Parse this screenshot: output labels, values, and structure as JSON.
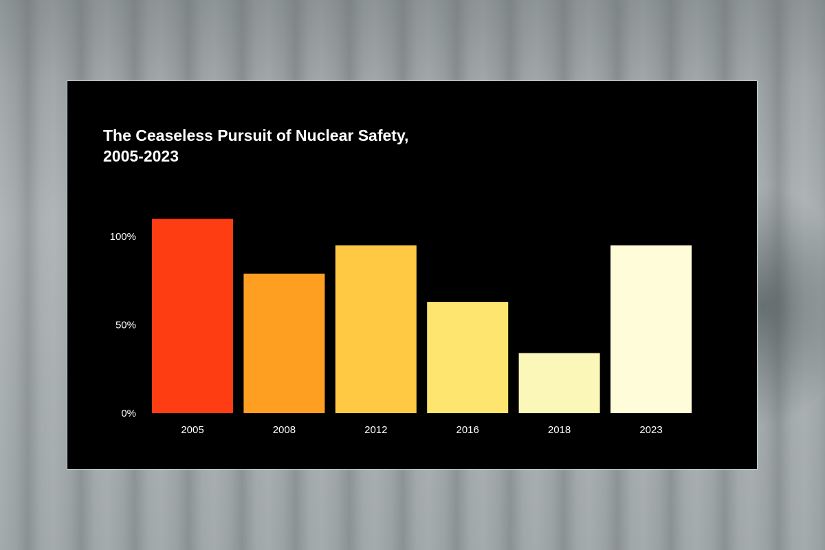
{
  "background": {
    "colors": [
      "#8f9698",
      "#a7aeb0"
    ]
  },
  "chart_data": {
    "type": "bar",
    "title_lines": [
      "The Ceaseless Pursuit of Nuclear Safety,",
      "2005-2023"
    ],
    "categories": [
      "2005",
      "2008",
      "2012",
      "2016",
      "2018",
      "2023"
    ],
    "values": [
      110,
      79,
      95,
      63,
      34,
      95
    ],
    "colors": [
      "#ff3d12",
      "#ff9f22",
      "#ffc943",
      "#fde56f",
      "#fbf7b8",
      "#fffcda"
    ],
    "y_ticks": [
      {
        "value": 0,
        "label": "0%"
      },
      {
        "value": 50,
        "label": "50%"
      },
      {
        "value": 100,
        "label": "100%"
      }
    ],
    "ylim": [
      0,
      100
    ],
    "xlabel": "",
    "ylabel": "",
    "grid": false,
    "legend": "none",
    "background_color": "#000000",
    "text_color": "#ffffff"
  }
}
